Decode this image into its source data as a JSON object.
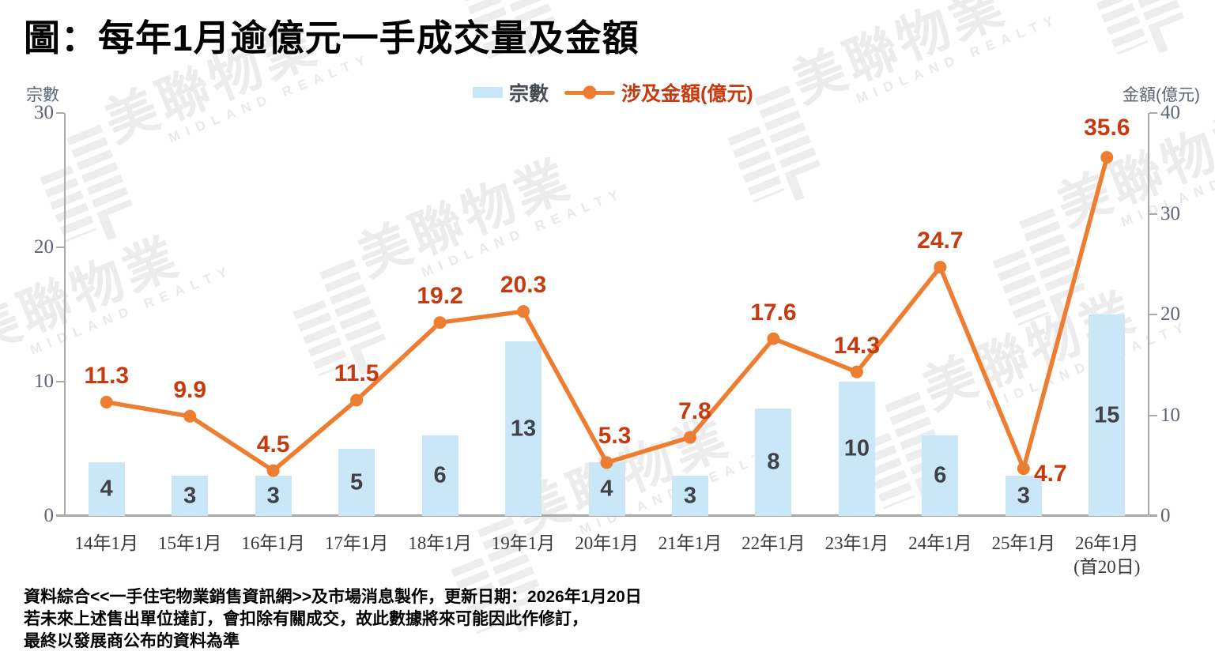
{
  "title": "圖：每年1月逾億元一手成交量及金額",
  "watermark": {
    "cjk": "美聯物業",
    "latin": "MIDLAND REALTY"
  },
  "footer": {
    "lines": [
      "資料綜合<<一手住宅物業銷售資訊網>>及市場消息製作，更新日期：2026年1月20日",
      "若未來上述售出單位撻訂，會扣除有關成交，故此數據將來可能因此作修訂，",
      "最終以發展商公布的資料為準"
    ]
  },
  "colors": {
    "bar": "#c9e7f7",
    "line": "#ed7d31",
    "value_label": "#c63a10",
    "bar_label": "#3f4149",
    "axis_line": "#a9a9a9",
    "tick_label": "#5a6472"
  },
  "chart_data": {
    "type": "combo_bar_line",
    "categories": [
      "14年1月",
      "15年1月",
      "16年1月",
      "17年1月",
      "18年1月",
      "19年1月",
      "20年1月",
      "21年1月",
      "22年1月",
      "23年1月",
      "24年1月",
      "25年1月",
      "26年1月\n(首20日)"
    ],
    "series": [
      {
        "name": "宗數",
        "type": "bar",
        "axis": "left",
        "values": [
          4,
          3,
          3,
          5,
          6,
          13,
          4,
          3,
          8,
          10,
          6,
          3,
          15
        ]
      },
      {
        "name": "涉及金額(億元)",
        "type": "line",
        "axis": "right",
        "values": [
          11.3,
          9.9,
          4.5,
          11.5,
          19.2,
          20.3,
          5.3,
          7.8,
          17.6,
          14.3,
          24.7,
          4.7,
          35.6
        ]
      }
    ],
    "left_axis": {
      "title": "宗數",
      "min": 0,
      "max": 30,
      "ticks": [
        0,
        10,
        20,
        30
      ]
    },
    "right_axis": {
      "title": "金額(億元)",
      "min": 0,
      "max": 40,
      "ticks": [
        0,
        10,
        20,
        30,
        40
      ]
    },
    "gridlines": false,
    "legend_position": "top",
    "value_label_offsets": {
      "6": {
        "dx": 10
      },
      "7": {
        "dx": 6
      },
      "11": {
        "dx": 34,
        "dy": 24
      },
      "12": {
        "dy": -20
      }
    }
  }
}
